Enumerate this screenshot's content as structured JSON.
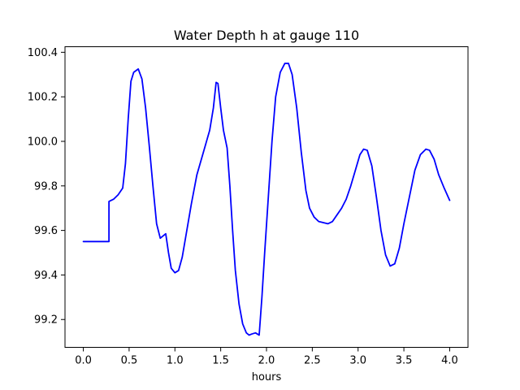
{
  "chart_data": {
    "type": "line",
    "title": "Water Depth h at gauge 110",
    "xlabel": "hours",
    "ylabel": "",
    "xlim": [
      -0.2,
      4.2
    ],
    "ylim": [
      99.075,
      100.425
    ],
    "x_ticks": [
      0.0,
      0.5,
      1.0,
      1.5,
      2.0,
      2.5,
      3.0,
      3.5,
      4.0
    ],
    "x_tick_labels": [
      "0.0",
      "0.5",
      "1.0",
      "1.5",
      "2.0",
      "2.5",
      "3.0",
      "3.5",
      "4.0"
    ],
    "y_ticks": [
      99.2,
      99.4,
      99.6,
      99.8,
      100.0,
      100.2,
      100.4
    ],
    "y_tick_labels": [
      "99.2",
      "99.4",
      "99.6",
      "99.8",
      "100.0",
      "100.2",
      "100.4"
    ],
    "grid": false,
    "series": [
      {
        "color": "#0000ff",
        "points": [
          [
            0.0,
            99.55
          ],
          [
            0.1,
            99.55
          ],
          [
            0.2,
            99.55
          ],
          [
            0.28,
            99.55
          ],
          [
            0.28,
            99.73
          ],
          [
            0.33,
            99.74
          ],
          [
            0.38,
            99.76
          ],
          [
            0.43,
            99.79
          ],
          [
            0.46,
            99.9
          ],
          [
            0.49,
            100.1
          ],
          [
            0.52,
            100.27
          ],
          [
            0.55,
            100.31
          ],
          [
            0.6,
            100.325
          ],
          [
            0.64,
            100.28
          ],
          [
            0.68,
            100.15
          ],
          [
            0.72,
            99.98
          ],
          [
            0.76,
            99.8
          ],
          [
            0.8,
            99.63
          ],
          [
            0.84,
            99.565
          ],
          [
            0.87,
            99.575
          ],
          [
            0.9,
            99.585
          ],
          [
            0.93,
            99.5
          ],
          [
            0.96,
            99.43
          ],
          [
            1.0,
            99.41
          ],
          [
            1.04,
            99.42
          ],
          [
            1.08,
            99.48
          ],
          [
            1.13,
            99.6
          ],
          [
            1.18,
            99.72
          ],
          [
            1.24,
            99.85
          ],
          [
            1.31,
            99.95
          ],
          [
            1.38,
            100.05
          ],
          [
            1.42,
            100.15
          ],
          [
            1.45,
            100.265
          ],
          [
            1.47,
            100.26
          ],
          [
            1.5,
            100.15
          ],
          [
            1.53,
            100.05
          ],
          [
            1.57,
            99.97
          ],
          [
            1.6,
            99.8
          ],
          [
            1.63,
            99.6
          ],
          [
            1.66,
            99.42
          ],
          [
            1.7,
            99.27
          ],
          [
            1.74,
            99.18
          ],
          [
            1.78,
            99.14
          ],
          [
            1.81,
            99.13
          ],
          [
            1.84,
            99.135
          ],
          [
            1.88,
            99.14
          ],
          [
            1.92,
            99.13
          ],
          [
            1.95,
            99.3
          ],
          [
            1.98,
            99.5
          ],
          [
            2.02,
            99.75
          ],
          [
            2.06,
            100.0
          ],
          [
            2.1,
            100.2
          ],
          [
            2.15,
            100.31
          ],
          [
            2.2,
            100.35
          ],
          [
            2.24,
            100.35
          ],
          [
            2.28,
            100.3
          ],
          [
            2.33,
            100.15
          ],
          [
            2.38,
            99.95
          ],
          [
            2.43,
            99.78
          ],
          [
            2.47,
            99.7
          ],
          [
            2.52,
            99.66
          ],
          [
            2.57,
            99.64
          ],
          [
            2.62,
            99.635
          ],
          [
            2.67,
            99.63
          ],
          [
            2.72,
            99.64
          ],
          [
            2.77,
            99.67
          ],
          [
            2.82,
            99.7
          ],
          [
            2.87,
            99.74
          ],
          [
            2.92,
            99.8
          ],
          [
            2.97,
            99.87
          ],
          [
            3.02,
            99.94
          ],
          [
            3.06,
            99.965
          ],
          [
            3.1,
            99.96
          ],
          [
            3.15,
            99.89
          ],
          [
            3.2,
            99.75
          ],
          [
            3.25,
            99.6
          ],
          [
            3.3,
            99.49
          ],
          [
            3.35,
            99.44
          ],
          [
            3.4,
            99.45
          ],
          [
            3.45,
            99.52
          ],
          [
            3.5,
            99.63
          ],
          [
            3.56,
            99.75
          ],
          [
            3.62,
            99.87
          ],
          [
            3.68,
            99.94
          ],
          [
            3.74,
            99.965
          ],
          [
            3.78,
            99.96
          ],
          [
            3.83,
            99.92
          ],
          [
            3.88,
            99.85
          ],
          [
            3.94,
            99.79
          ],
          [
            4.0,
            99.735
          ]
        ]
      }
    ]
  }
}
